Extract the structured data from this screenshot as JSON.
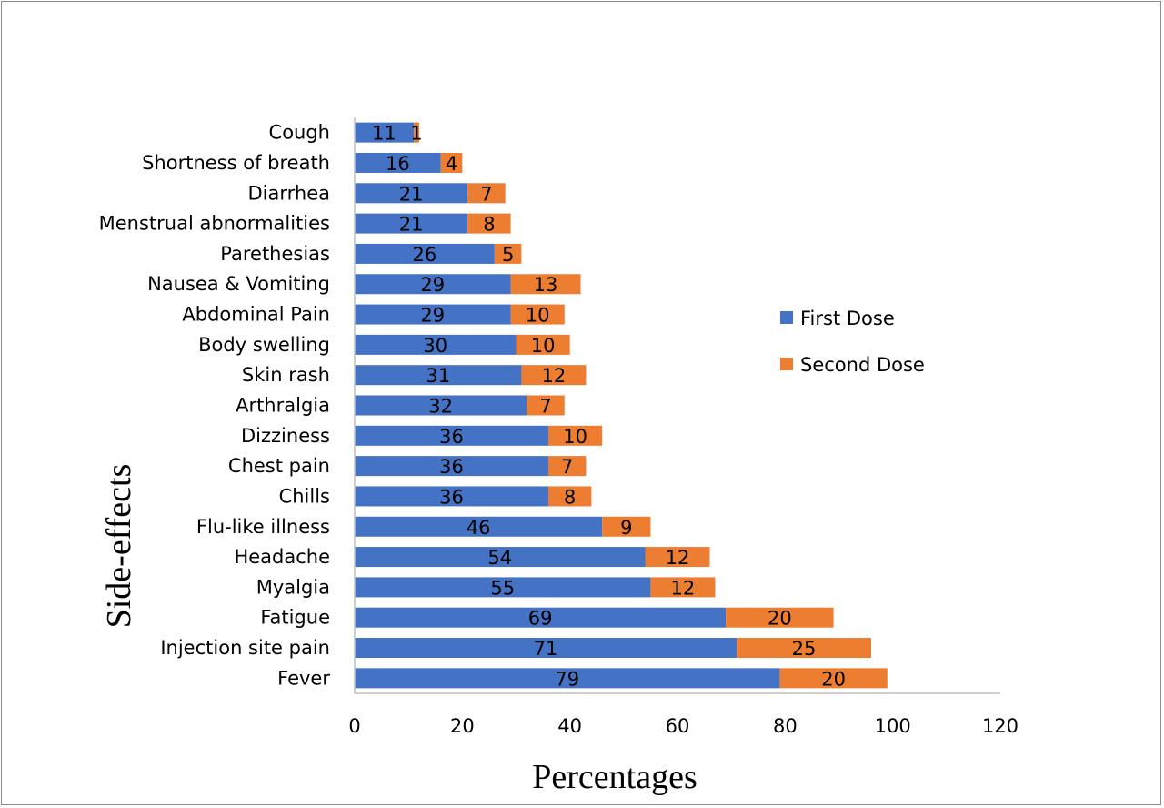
{
  "chart_data": {
    "type": "bar",
    "orientation": "horizontal",
    "stacked": true,
    "categories": [
      "Cough",
      "Shortness of breath",
      "Diarrhea",
      "Menstrual abnormalities",
      "Parethesias",
      "Nausea & Vomiting",
      "Abdominal Pain",
      "Body swelling",
      "Skin rash",
      "Arthralgia",
      "Dizziness",
      "Chest pain",
      "Chills",
      "Flu-like illness",
      "Headache",
      "Myalgia",
      "Fatigue",
      "Injection site pain",
      "Fever"
    ],
    "series": [
      {
        "name": "First Dose",
        "color": "#4472C4",
        "values": [
          11,
          16,
          21,
          21,
          26,
          29,
          29,
          30,
          31,
          32,
          36,
          36,
          36,
          46,
          54,
          55,
          69,
          71,
          79
        ]
      },
      {
        "name": "Second Dose",
        "color": "#ED7D31",
        "values": [
          1,
          4,
          7,
          8,
          5,
          13,
          10,
          10,
          12,
          7,
          10,
          7,
          8,
          9,
          12,
          12,
          20,
          25,
          20
        ]
      }
    ],
    "xlabel": "Percentages",
    "ylabel": "Side-effects",
    "xlim": [
      0,
      120
    ],
    "xticks": [
      "0",
      "20",
      "40",
      "60",
      "80",
      "100",
      "120"
    ],
    "grid": false,
    "legend_position": "right"
  }
}
